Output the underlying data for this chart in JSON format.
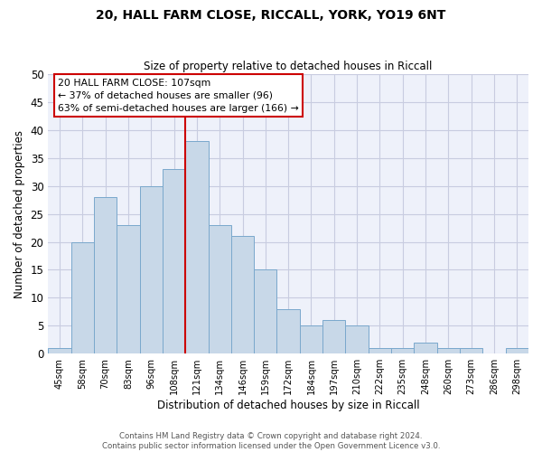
{
  "title": "20, HALL FARM CLOSE, RICCALL, YORK, YO19 6NT",
  "subtitle": "Size of property relative to detached houses in Riccall",
  "xlabel": "Distribution of detached houses by size in Riccall",
  "ylabel": "Number of detached properties",
  "categories": [
    "45sqm",
    "58sqm",
    "70sqm",
    "83sqm",
    "96sqm",
    "108sqm",
    "121sqm",
    "134sqm",
    "146sqm",
    "159sqm",
    "172sqm",
    "184sqm",
    "197sqm",
    "210sqm",
    "222sqm",
    "235sqm",
    "248sqm",
    "260sqm",
    "273sqm",
    "286sqm",
    "298sqm"
  ],
  "values": [
    1,
    20,
    28,
    23,
    30,
    33,
    38,
    23,
    21,
    15,
    8,
    5,
    6,
    5,
    1,
    1,
    2,
    1,
    1,
    0,
    1
  ],
  "bar_color": "#c8d8e8",
  "bar_edge_color": "#7aa8cc",
  "vline_x_index": 5,
  "vline_color": "#cc0000",
  "annotation_lines": [
    "20 HALL FARM CLOSE: 107sqm",
    "← 37% of detached houses are smaller (96)",
    "63% of semi-detached houses are larger (166) →"
  ],
  "ylim": [
    0,
    50
  ],
  "yticks": [
    0,
    5,
    10,
    15,
    20,
    25,
    30,
    35,
    40,
    45,
    50
  ],
  "bg_color": "#eef1fa",
  "grid_color": "#c8cce0",
  "footer_line1": "Contains HM Land Registry data © Crown copyright and database right 2024.",
  "footer_line2": "Contains public sector information licensed under the Open Government Licence v3.0."
}
